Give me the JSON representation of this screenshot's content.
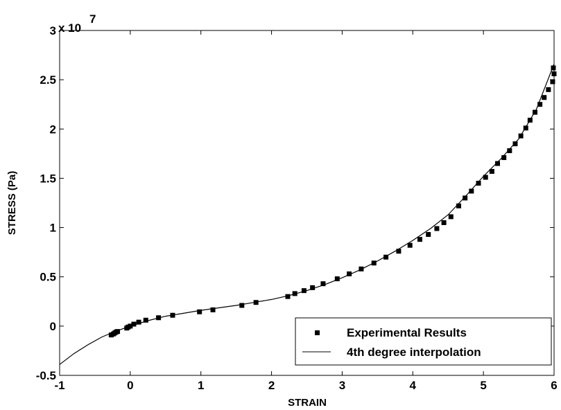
{
  "chart_data": {
    "type": "scatter",
    "xlabel": "STRAIN",
    "ylabel": "STRESS (Pa)",
    "y_multiplier_label": "x 10",
    "y_multiplier_exponent": "7",
    "xlim": [
      -1,
      6
    ],
    "ylim": [
      -0.5,
      3
    ],
    "x_ticks": [
      -1,
      0,
      1,
      2,
      3,
      4,
      5,
      6
    ],
    "x_tick_labels": [
      "-1",
      "0",
      "1",
      "2",
      "3",
      "4",
      "5",
      "6"
    ],
    "y_ticks": [
      -0.5,
      0,
      0.5,
      1,
      1.5,
      2,
      2.5,
      3
    ],
    "y_tick_labels": [
      "-0.5",
      "0",
      "0.5",
      "1",
      "1.5",
      "2",
      "2.5",
      "3"
    ],
    "grid": false,
    "legend_position": "bottom-right",
    "series": [
      {
        "name": "Experimental Results",
        "kind": "markers",
        "marker": "square",
        "color": "#000000",
        "points": [
          [
            -0.27,
            -0.09
          ],
          [
            -0.24,
            -0.08
          ],
          [
            -0.22,
            -0.07
          ],
          [
            -0.2,
            -0.06
          ],
          [
            -0.18,
            -0.055
          ],
          [
            -0.05,
            -0.02
          ],
          [
            -0.03,
            -0.01
          ],
          [
            0.0,
            0.0
          ],
          [
            0.05,
            0.02
          ],
          [
            0.12,
            0.04
          ],
          [
            0.22,
            0.06
          ],
          [
            0.4,
            0.085
          ],
          [
            0.6,
            0.11
          ],
          [
            0.98,
            0.145
          ],
          [
            1.17,
            0.165
          ],
          [
            1.58,
            0.21
          ],
          [
            1.78,
            0.24
          ],
          [
            2.23,
            0.3
          ],
          [
            2.33,
            0.33
          ],
          [
            2.46,
            0.36
          ],
          [
            2.58,
            0.39
          ],
          [
            2.73,
            0.43
          ],
          [
            2.93,
            0.48
          ],
          [
            3.1,
            0.53
          ],
          [
            3.27,
            0.58
          ],
          [
            3.45,
            0.64
          ],
          [
            3.62,
            0.7
          ],
          [
            3.8,
            0.76
          ],
          [
            3.96,
            0.82
          ],
          [
            4.1,
            0.88
          ],
          [
            4.22,
            0.93
          ],
          [
            4.34,
            0.99
          ],
          [
            4.44,
            1.05
          ],
          [
            4.54,
            1.11
          ],
          [
            4.65,
            1.22
          ],
          [
            4.74,
            1.3
          ],
          [
            4.83,
            1.37
          ],
          [
            4.93,
            1.45
          ],
          [
            5.03,
            1.51
          ],
          [
            5.12,
            1.57
          ],
          [
            5.2,
            1.65
          ],
          [
            5.29,
            1.71
          ],
          [
            5.37,
            1.78
          ],
          [
            5.45,
            1.85
          ],
          [
            5.53,
            1.93
          ],
          [
            5.6,
            2.01
          ],
          [
            5.66,
            2.09
          ],
          [
            5.73,
            2.17
          ],
          [
            5.8,
            2.25
          ],
          [
            5.86,
            2.32
          ],
          [
            5.92,
            2.4
          ],
          [
            5.98,
            2.48
          ],
          [
            6.0,
            2.56
          ],
          [
            5.99,
            2.62
          ]
        ]
      },
      {
        "name": "4th degree interpolation",
        "kind": "line",
        "color": "#000000",
        "points": [
          [
            -1.0,
            -0.39
          ],
          [
            -0.8,
            -0.28
          ],
          [
            -0.6,
            -0.19
          ],
          [
            -0.4,
            -0.11
          ],
          [
            -0.2,
            -0.05
          ],
          [
            0.0,
            0.0
          ],
          [
            0.25,
            0.055
          ],
          [
            0.5,
            0.1
          ],
          [
            0.75,
            0.13
          ],
          [
            1.0,
            0.16
          ],
          [
            1.25,
            0.185
          ],
          [
            1.5,
            0.21
          ],
          [
            1.75,
            0.24
          ],
          [
            2.0,
            0.27
          ],
          [
            2.25,
            0.31
          ],
          [
            2.5,
            0.36
          ],
          [
            2.75,
            0.42
          ],
          [
            3.0,
            0.49
          ],
          [
            3.25,
            0.57
          ],
          [
            3.5,
            0.66
          ],
          [
            3.75,
            0.76
          ],
          [
            4.0,
            0.87
          ],
          [
            4.25,
            0.99
          ],
          [
            4.5,
            1.13
          ],
          [
            4.75,
            1.32
          ],
          [
            5.0,
            1.52
          ],
          [
            5.25,
            1.7
          ],
          [
            5.5,
            1.9
          ],
          [
            5.75,
            2.2
          ],
          [
            6.0,
            2.66
          ]
        ]
      }
    ]
  }
}
